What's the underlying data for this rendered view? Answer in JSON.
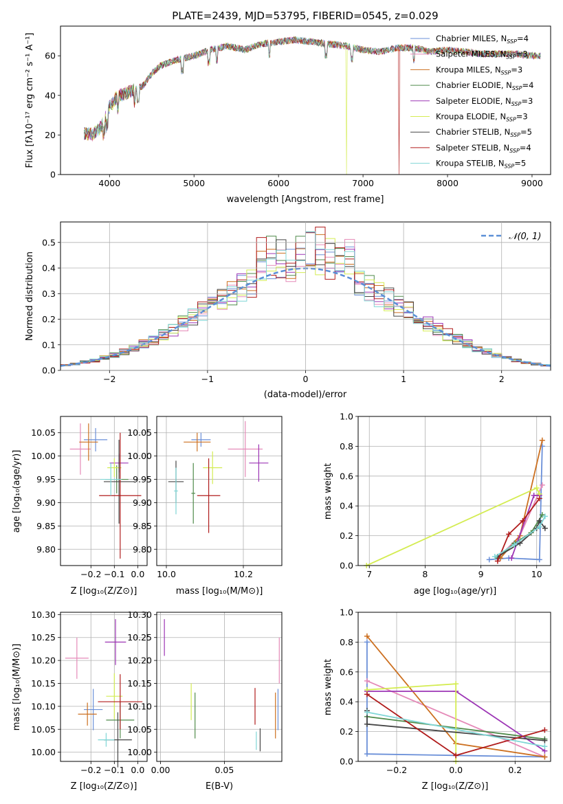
{
  "chart_data": [
    {
      "id": "spectrum",
      "type": "line",
      "title": "PLATE=2439, MJD=53795, FIBERID=0545, z=0.029",
      "xlabel": "wavelength [Angstrom, rest frame]",
      "ylabel": "Flux [fλ10⁻¹⁷ erg cm⁻² s⁻¹ A⁻¹]",
      "xlim": [
        3420,
        9220
      ],
      "ylim": [
        0,
        75
      ],
      "xticks": [
        4000,
        5000,
        6000,
        7000,
        8000,
        9000
      ],
      "yticks": [
        0,
        20,
        40,
        60
      ],
      "grid": false,
      "legend_position": "upper-right",
      "continuum": {
        "x": [
          3700,
          3800,
          3900,
          4000,
          4100,
          4200,
          4300,
          4400,
          4500,
          4600,
          4800,
          5000,
          5200,
          5400,
          5600,
          5800,
          6000,
          6200,
          6400,
          6600,
          6800,
          7000,
          7200,
          7400,
          7600,
          7800,
          8000,
          8200,
          8400,
          8600,
          8800,
          9000
        ],
        "y": [
          21,
          20,
          24,
          34,
          40,
          41,
          43,
          45,
          51,
          55,
          58,
          60,
          63,
          65,
          63,
          66,
          67,
          68,
          67,
          66,
          65,
          63,
          62,
          64,
          64,
          62,
          63,
          62,
          61,
          61,
          61,
          60
        ]
      },
      "series": [
        {
          "name": "Chabrier MILES",
          "nssp": "4",
          "color": "#6a8fd8"
        },
        {
          "name": "Salpeter MILES",
          "nssp": "3",
          "color": "#e58ab8"
        },
        {
          "name": "Kroupa MILES",
          "nssp": "3",
          "color": "#cc6f1f",
          "drop_at": null
        },
        {
          "name": "Chabrier ELODIE",
          "nssp": "4",
          "color": "#4f8a4a"
        },
        {
          "name": "Salpeter ELODIE",
          "nssp": "3",
          "color": "#9c35b5"
        },
        {
          "name": "Kroupa ELODIE",
          "nssp": "3",
          "color": "#d4ec52",
          "drop_at": 6800
        },
        {
          "name": "Chabrier STELIB",
          "nssp": "5",
          "color": "#444444"
        },
        {
          "name": "Salpeter STELIB",
          "nssp": "4",
          "color": "#b01c1c",
          "drop_at": 7420
        },
        {
          "name": "Kroupa STELIB",
          "nssp": "5",
          "color": "#7fd6d6"
        }
      ]
    },
    {
      "id": "residuals",
      "type": "step",
      "xlabel": "(data-model)/error",
      "ylabel": "Normed distribution",
      "xlim": [
        -2.5,
        2.5
      ],
      "ylim": [
        0,
        0.58
      ],
      "xticks": [
        -2,
        -1,
        0,
        1,
        2
      ],
      "yticks": [
        0.0,
        0.1,
        0.2,
        0.3,
        0.4,
        0.5
      ],
      "grid": true,
      "bin_width": 0.1,
      "reference_label": "𝒩(0, 1)",
      "reference_color": "#5b8fd6"
    },
    {
      "id": "age-vs-Z",
      "type": "errorbar",
      "xlabel": "Z [log₁₀(Z/Z⊙)]",
      "ylabel": "age  [log₁₀(age/yr)]",
      "xlim": [
        -0.33,
        0.04
      ],
      "ylim": [
        9.765,
        10.085
      ],
      "xticks": [
        -0.2,
        -0.1,
        0.0
      ],
      "yticks": [
        9.8,
        9.85,
        9.9,
        9.95,
        10.0,
        10.05
      ],
      "grid": true,
      "points": [
        {
          "x": -0.18,
          "y": 10.035,
          "xerr": 0.05,
          "yerr": 0.025,
          "color": "#6a8fd8"
        },
        {
          "x": -0.245,
          "y": 10.015,
          "xerr": 0.045,
          "yerr": 0.055,
          "color": "#e58ab8"
        },
        {
          "x": -0.21,
          "y": 10.03,
          "xerr": 0.04,
          "yerr": 0.04,
          "color": "#cc6f1f"
        },
        {
          "x": -0.09,
          "y": 9.95,
          "xerr": 0.05,
          "yerr": 0.03,
          "color": "#4f8a4a"
        },
        {
          "x": -0.08,
          "y": 9.985,
          "xerr": 0.04,
          "yerr": 0.02,
          "color": "#9c35b5"
        },
        {
          "x": -0.1,
          "y": 9.975,
          "xerr": 0.03,
          "yerr": 0.02,
          "color": "#d4ec52"
        },
        {
          "x": -0.08,
          "y": 9.945,
          "xerr": 0.065,
          "yerr": 0.09,
          "color": "#444444"
        },
        {
          "x": -0.075,
          "y": 9.915,
          "xerr": 0.09,
          "yerr": 0.135,
          "color": "#b01c1c"
        },
        {
          "x": -0.115,
          "y": 9.95,
          "xerr": 0.045,
          "yerr": 0.035,
          "color": "#7fd6d6"
        }
      ]
    },
    {
      "id": "age-vs-mass",
      "type": "errorbar",
      "xlabel": "mass [log₁₀(M/M⊙)]",
      "ylabel": "",
      "xlim": [
        9.975,
        10.3
      ],
      "ylim": [
        9.765,
        10.085
      ],
      "xticks": [
        10.0,
        10.2
      ],
      "yticks": [
        9.8,
        9.85,
        9.9,
        9.95,
        10.0,
        10.05
      ],
      "grid": true,
      "points": [
        {
          "x": 10.09,
          "y": 10.035,
          "xerr": 0.025,
          "yerr": 0.015,
          "color": "#6a8fd8"
        },
        {
          "x": 10.205,
          "y": 10.015,
          "xerr": 0.045,
          "yerr": 0.06,
          "color": "#e58ab8"
        },
        {
          "x": 10.08,
          "y": 10.03,
          "xerr": 0.035,
          "yerr": 0.02,
          "color": "#cc6f1f"
        },
        {
          "x": 10.07,
          "y": 9.92,
          "xerr": 0.005,
          "yerr": 0.065,
          "color": "#4f8a4a"
        },
        {
          "x": 10.24,
          "y": 9.985,
          "xerr": 0.025,
          "yerr": 0.04,
          "color": "#9c35b5"
        },
        {
          "x": 10.12,
          "y": 9.975,
          "xerr": 0.025,
          "yerr": 0.035,
          "color": "#d4ec52"
        },
        {
          "x": 10.025,
          "y": 9.945,
          "xerr": 0.02,
          "yerr": 0.045,
          "color": "#444444"
        },
        {
          "x": 10.11,
          "y": 9.915,
          "xerr": 0.03,
          "yerr": 0.08,
          "color": "#b01c1c"
        },
        {
          "x": 10.025,
          "y": 9.925,
          "xerr": 0.005,
          "yerr": 0.05,
          "color": "#7fd6d6"
        }
      ]
    },
    {
      "id": "mass-weight-vs-age",
      "type": "line",
      "xlabel": "age  [log₁₀(age/yr)]",
      "ylabel": "mass weight",
      "xlim": [
        6.8,
        10.25
      ],
      "ylim": [
        0.0,
        1.0
      ],
      "xticks": [
        7,
        8,
        9,
        10
      ],
      "yticks": [
        0.0,
        0.2,
        0.4,
        0.6,
        0.8,
        1.0
      ],
      "grid": true,
      "series": [
        {
          "color": "#6a8fd8",
          "x": [
            9.15,
            9.5,
            10.05,
            10.1
          ],
          "y": [
            0.04,
            0.05,
            0.04,
            0.8
          ]
        },
        {
          "color": "#e58ab8",
          "x": [
            9.3,
            9.7,
            10.1
          ],
          "y": [
            0.05,
            0.2,
            0.54
          ]
        },
        {
          "color": "#cc6f1f",
          "x": [
            9.35,
            9.7,
            10.1
          ],
          "y": [
            0.05,
            0.2,
            0.84
          ]
        },
        {
          "color": "#4f8a4a",
          "x": [
            9.3,
            9.6,
            9.9,
            10.1
          ],
          "y": [
            0.05,
            0.15,
            0.22,
            0.34
          ]
        },
        {
          "color": "#9c35b5",
          "x": [
            9.55,
            9.95,
            10.05
          ],
          "y": [
            0.05,
            0.47,
            0.47
          ]
        },
        {
          "color": "#d4ec52",
          "x": [
            6.95,
            10.0,
            10.05
          ],
          "y": [
            0.0,
            0.52,
            0.48
          ]
        },
        {
          "color": "#444444",
          "x": [
            9.3,
            9.7,
            10.0,
            10.05,
            10.15
          ],
          "y": [
            0.06,
            0.15,
            0.25,
            0.3,
            0.25
          ]
        },
        {
          "color": "#b01c1c",
          "x": [
            9.3,
            9.5,
            9.75,
            10.05
          ],
          "y": [
            0.03,
            0.21,
            0.3,
            0.45
          ]
        },
        {
          "color": "#7fd6d6",
          "x": [
            9.25,
            9.6,
            10.05,
            10.15
          ],
          "y": [
            0.06,
            0.14,
            0.26,
            0.33
          ]
        }
      ]
    },
    {
      "id": "mass-vs-Z",
      "type": "errorbar",
      "xlabel": "Z [log₁₀(Z/Z⊙)]",
      "ylabel": "mass [log₁₀(M/M⊙)]",
      "xlim": [
        -0.33,
        0.04
      ],
      "ylim": [
        9.98,
        10.305
      ],
      "xticks": [
        -0.2,
        -0.1,
        0.0
      ],
      "yticks": [
        10.0,
        10.05,
        10.1,
        10.15,
        10.2,
        10.25,
        10.3
      ],
      "grid": true,
      "points": [
        {
          "x": -0.19,
          "y": 10.093,
          "xerr": 0.04,
          "yerr": 0.045,
          "color": "#6a8fd8"
        },
        {
          "x": -0.26,
          "y": 10.205,
          "xerr": 0.05,
          "yerr": 0.045,
          "color": "#e58ab8"
        },
        {
          "x": -0.215,
          "y": 10.083,
          "xerr": 0.04,
          "yerr": 0.025,
          "color": "#cc6f1f"
        },
        {
          "x": -0.075,
          "y": 10.07,
          "xerr": 0.06,
          "yerr": 0.04,
          "color": "#4f8a4a"
        },
        {
          "x": -0.095,
          "y": 10.24,
          "xerr": 0.045,
          "yerr": 0.05,
          "color": "#9c35b5"
        },
        {
          "x": -0.1,
          "y": 10.122,
          "xerr": 0.035,
          "yerr": 0.05,
          "color": "#d4ec52"
        },
        {
          "x": -0.085,
          "y": 10.027,
          "xerr": 0.06,
          "yerr": 0.06,
          "color": "#444444"
        },
        {
          "x": -0.075,
          "y": 10.11,
          "xerr": 0.095,
          "yerr": 0.06,
          "color": "#b01c1c"
        },
        {
          "x": -0.135,
          "y": 10.027,
          "xerr": 0.035,
          "yerr": 0.015,
          "color": "#7fd6d6"
        }
      ]
    },
    {
      "id": "mass-vs-ebv",
      "type": "errorbar",
      "xlabel": "E(B-V)",
      "ylabel": "",
      "xlim": [
        -0.003,
        0.095
      ],
      "ylim": [
        9.98,
        10.305
      ],
      "xticks": [
        0.0,
        0.05
      ],
      "yticks": [
        10.0,
        10.05,
        10.1,
        10.15,
        10.2,
        10.25,
        10.3
      ],
      "grid": true,
      "points": [
        {
          "x": 0.092,
          "y": 10.093,
          "xerr": 0,
          "yerr": 0.045,
          "color": "#6a8fd8"
        },
        {
          "x": 0.093,
          "y": 10.2,
          "xerr": 0,
          "yerr": 0.05,
          "color": "#e58ab8"
        },
        {
          "x": 0.09,
          "y": 10.08,
          "xerr": 0,
          "yerr": 0.05,
          "color": "#cc6f1f"
        },
        {
          "x": 0.027,
          "y": 10.08,
          "xerr": 0,
          "yerr": 0.05,
          "color": "#4f8a4a"
        },
        {
          "x": 0.003,
          "y": 10.25,
          "xerr": 0,
          "yerr": 0.04,
          "color": "#9c35b5"
        },
        {
          "x": 0.024,
          "y": 10.11,
          "xerr": 0,
          "yerr": 0.04,
          "color": "#d4ec52"
        },
        {
          "x": 0.078,
          "y": 10.027,
          "xerr": 0,
          "yerr": 0.025,
          "color": "#444444"
        },
        {
          "x": 0.074,
          "y": 10.1,
          "xerr": 0,
          "yerr": 0.04,
          "color": "#b01c1c"
        },
        {
          "x": 0.075,
          "y": 10.025,
          "xerr": 0,
          "yerr": 0.02,
          "color": "#7fd6d6"
        }
      ]
    },
    {
      "id": "mass-weight-vs-Z",
      "type": "line",
      "xlabel": "Z [log₁₀(Z/Z⊙)]",
      "ylabel": "mass weight",
      "xlim": [
        -0.33,
        0.32
      ],
      "ylim": [
        0.0,
        1.0
      ],
      "xticks": [
        -0.2,
        0.0,
        0.2
      ],
      "yticks": [
        0.0,
        0.2,
        0.4,
        0.6,
        0.8,
        1.0
      ],
      "grid": true,
      "series": [
        {
          "color": "#6a8fd8",
          "x": [
            -0.3,
            -0.3,
            0.0,
            0.3
          ],
          "y": [
            0.8,
            0.05,
            0.04,
            0.03
          ]
        },
        {
          "color": "#e58ab8",
          "x": [
            -0.3,
            0.3
          ],
          "y": [
            0.54,
            0.03
          ]
        },
        {
          "color": "#cc6f1f",
          "x": [
            -0.3,
            0.0,
            0.3
          ],
          "y": [
            0.84,
            0.12,
            0.03
          ]
        },
        {
          "color": "#4f8a4a",
          "x": [
            -0.3,
            0.3
          ],
          "y": [
            0.3,
            0.15
          ]
        },
        {
          "color": "#9c35b5",
          "x": [
            -0.3,
            0.0,
            0.3
          ],
          "y": [
            0.47,
            0.47,
            0.07
          ]
        },
        {
          "color": "#d4ec52",
          "x": [
            -0.3,
            0.0,
            0.0
          ],
          "y": [
            0.48,
            0.52,
            0.0
          ]
        },
        {
          "color": "#444444",
          "x": [
            -0.3,
            -0.3,
            0.3
          ],
          "y": [
            0.34,
            0.25,
            0.14
          ]
        },
        {
          "color": "#b01c1c",
          "x": [
            -0.3,
            0.0,
            0.3
          ],
          "y": [
            0.45,
            0.04,
            0.21
          ]
        },
        {
          "color": "#7fd6d6",
          "x": [
            -0.3,
            0.3
          ],
          "y": [
            0.33,
            0.1
          ]
        }
      ]
    }
  ]
}
